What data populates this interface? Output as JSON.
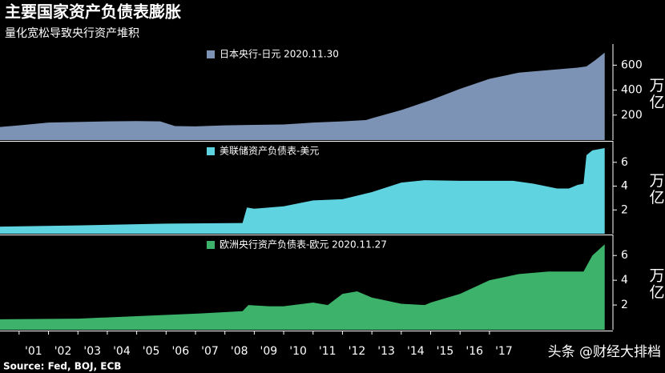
{
  "title": "主要国家资产负债表膨胀",
  "subtitle": "量化宽松导致央行资产堆积",
  "source": "Source: Fed, BOJ, ECB",
  "watermark": "头条 @财经大排档",
  "chart_data": [
    {
      "type": "area",
      "y_label": "万亿",
      "x": [
        2000.35,
        2001,
        2002,
        2003,
        2004,
        2005,
        2005.8,
        2006.3,
        2007,
        2008,
        2009,
        2010,
        2011,
        2012,
        2012.8,
        2013,
        2014,
        2015,
        2016,
        2017,
        2018,
        2019,
        2020,
        2020.3,
        2020.6,
        2020.92
      ],
      "series": [
        {
          "name": "日本央行-日元 2020.11.30",
          "color": "#7d93b5",
          "values": [
            105,
            118,
            140,
            145,
            150,
            152,
            150,
            112,
            110,
            118,
            122,
            125,
            140,
            150,
            160,
            175,
            240,
            320,
            410,
            490,
            540,
            560,
            580,
            590,
            640,
            700
          ]
        }
      ],
      "xlim": [
        2000.35,
        2021.2
      ],
      "ylim": [
        0,
        750
      ],
      "yticks": [
        200,
        400,
        600
      ]
    },
    {
      "type": "area",
      "y_label": "万亿",
      "x": [
        2000.35,
        2003,
        2006,
        2008.6,
        2008.75,
        2009,
        2010,
        2011,
        2012,
        2013,
        2014,
        2014.8,
        2016,
        2017.8,
        2018.5,
        2019.3,
        2019.7,
        2020,
        2020.2,
        2020.3,
        2020.5,
        2020.92
      ],
      "series": [
        {
          "name": "美联储资产负债表-美元",
          "color": "#5fd3e0",
          "values": [
            0.6,
            0.7,
            0.85,
            0.9,
            2.2,
            2.1,
            2.3,
            2.8,
            2.9,
            3.5,
            4.3,
            4.5,
            4.45,
            4.45,
            4.2,
            3.8,
            3.8,
            4.1,
            4.2,
            6.6,
            7.0,
            7.2
          ]
        }
      ],
      "xlim": [
        2000.35,
        2021.2
      ],
      "ylim": [
        0,
        7.6
      ],
      "yticks": [
        2,
        4,
        6
      ]
    },
    {
      "type": "area",
      "y_label": "万亿",
      "x": [
        2000.35,
        2003,
        2005,
        2007,
        2008.6,
        2008.8,
        2009.5,
        2010,
        2011,
        2011.5,
        2012,
        2012.5,
        2013,
        2014,
        2014.8,
        2015,
        2016,
        2017,
        2018,
        2019,
        2020,
        2020.2,
        2020.5,
        2020.92
      ],
      "series": [
        {
          "name": "欧洲央行资产负债表-欧元 2020.11.27",
          "color": "#3cb26a",
          "values": [
            0.85,
            0.9,
            1.1,
            1.3,
            1.5,
            2.0,
            1.9,
            1.9,
            2.2,
            2.0,
            2.9,
            3.1,
            2.6,
            2.1,
            2.0,
            2.2,
            2.9,
            4.0,
            4.5,
            4.7,
            4.7,
            4.7,
            6.0,
            6.9
          ]
        }
      ],
      "xlim": [
        2000.35,
        2021.2
      ],
      "ylim": [
        0,
        7.5
      ],
      "yticks": [
        2,
        4,
        6
      ],
      "xticks": [
        {
          "value": 2001,
          "label": "'01"
        },
        {
          "value": 2002,
          "label": "'02"
        },
        {
          "value": 2003,
          "label": "'03"
        },
        {
          "value": 2004,
          "label": "'04"
        },
        {
          "value": 2005,
          "label": "'05"
        },
        {
          "value": 2006,
          "label": "'06"
        },
        {
          "value": 2007,
          "label": "'07"
        },
        {
          "value": 2008,
          "label": "'08"
        },
        {
          "value": 2009,
          "label": "'09"
        },
        {
          "value": 2010,
          "label": "'10"
        },
        {
          "value": 2011,
          "label": "'11"
        },
        {
          "value": 2012,
          "label": "'12"
        },
        {
          "value": 2013,
          "label": "'13"
        },
        {
          "value": 2014,
          "label": "'14"
        },
        {
          "value": 2015,
          "label": "'15"
        },
        {
          "value": 2016,
          "label": "'16"
        },
        {
          "value": 2017,
          "label": "'17"
        }
      ]
    }
  ]
}
